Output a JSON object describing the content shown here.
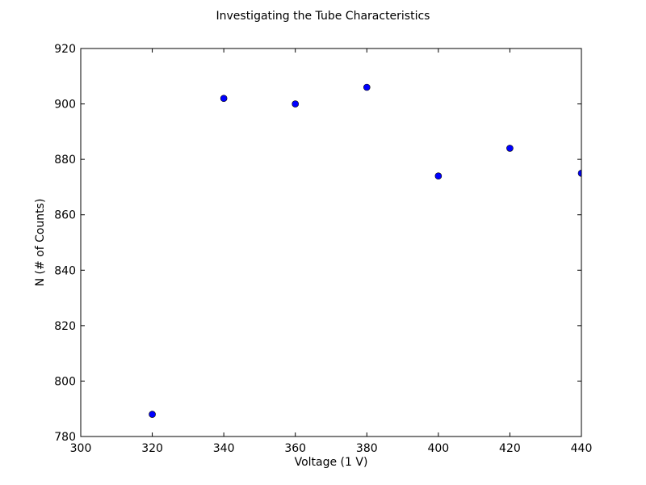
{
  "chart_data": {
    "type": "scatter",
    "title": "Investigating the Tube Characteristics",
    "xlabel": "Voltage (1 V)",
    "ylabel": "N (# of Counts)",
    "xlim": [
      300,
      440
    ],
    "ylim": [
      780,
      920
    ],
    "x_ticks": [
      300,
      320,
      340,
      360,
      380,
      400,
      420,
      440
    ],
    "y_ticks": [
      780,
      800,
      820,
      840,
      860,
      880,
      900,
      920
    ],
    "grid": false,
    "marker_color": "#0000ff",
    "marker_edge_color": "#000000",
    "points": [
      {
        "x": 320,
        "y": 788
      },
      {
        "x": 340,
        "y": 902
      },
      {
        "x": 360,
        "y": 900
      },
      {
        "x": 380,
        "y": 906
      },
      {
        "x": 400,
        "y": 874
      },
      {
        "x": 420,
        "y": 884
      },
      {
        "x": 440,
        "y": 875
      }
    ]
  }
}
